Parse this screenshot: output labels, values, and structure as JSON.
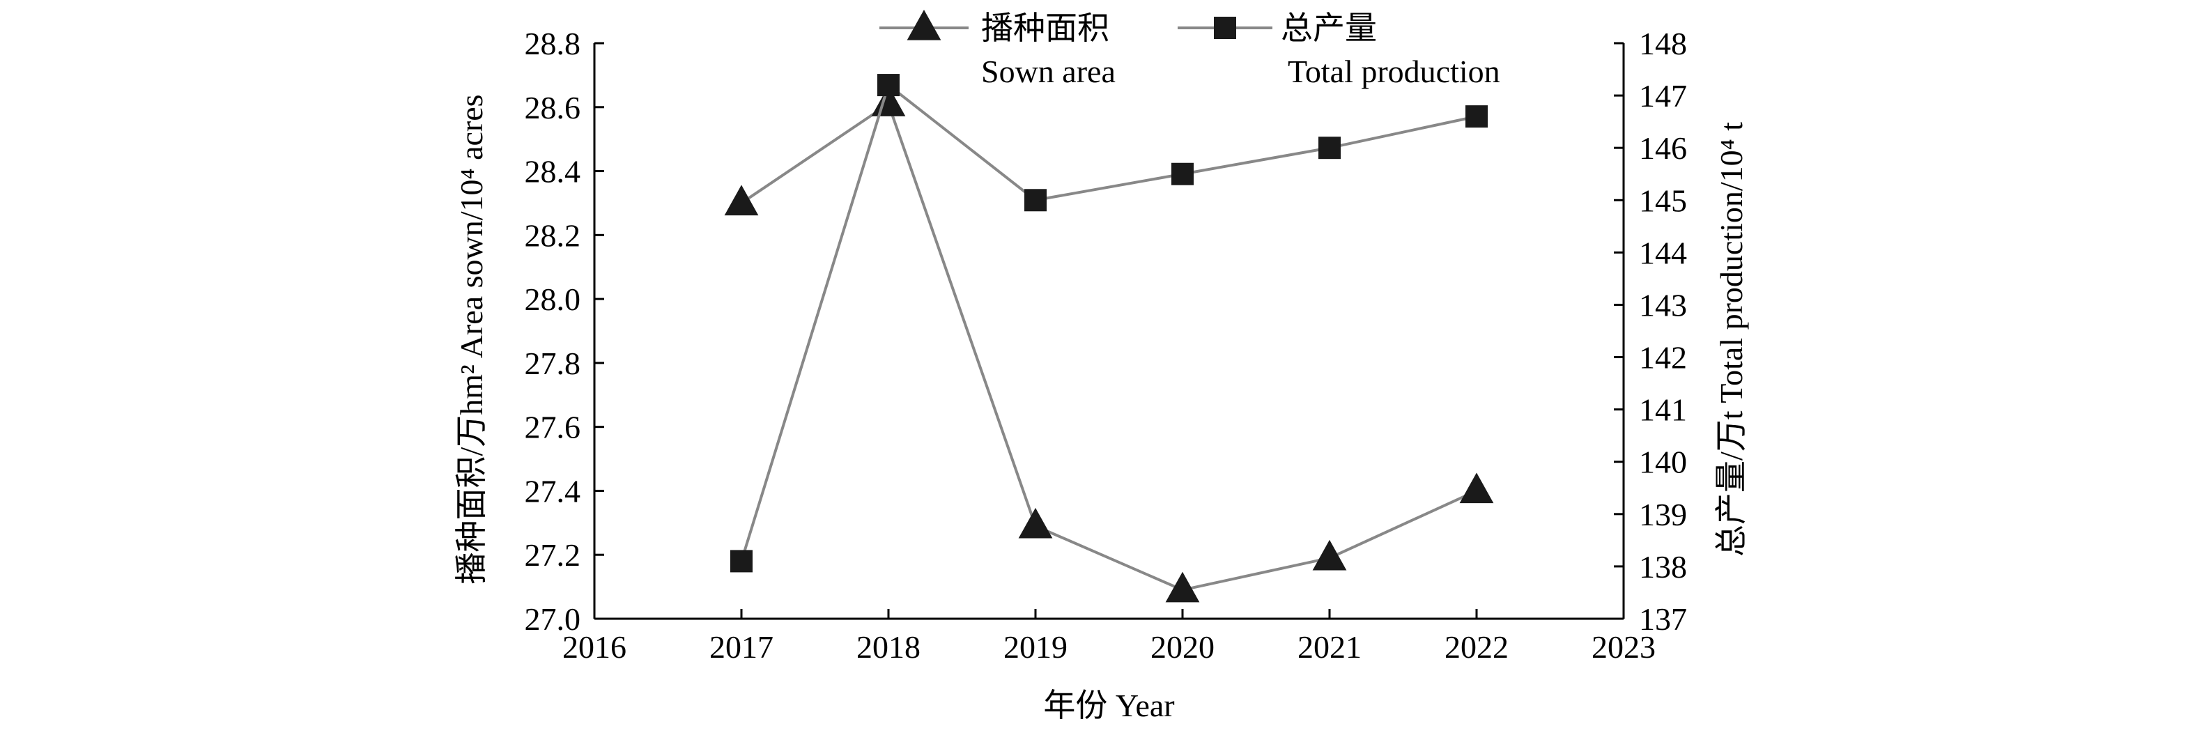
{
  "chart_data": {
    "type": "line",
    "xlabel": "年份 Year",
    "x_ticks": [
      "2016",
      "2017",
      "2018",
      "2019",
      "2020",
      "2021",
      "2022",
      "2023"
    ],
    "xlim": [
      2016,
      2023
    ],
    "y_left": {
      "label": "播种面积/万hm² Area sown/10⁴ acres",
      "ylim": [
        27.0,
        28.8
      ],
      "ticks": [
        "27.0",
        "27.2",
        "27.4",
        "27.6",
        "27.8",
        "28.0",
        "28.2",
        "28.4",
        "28.6",
        "28.8"
      ]
    },
    "y_right": {
      "label": "总产量/万t Total production/10⁴ t",
      "ylim": [
        137,
        148
      ],
      "ticks": [
        "137",
        "138",
        "139",
        "140",
        "141",
        "142",
        "143",
        "144",
        "145",
        "146",
        "147",
        "148"
      ]
    },
    "series": [
      {
        "name": "播种面积",
        "name_en": "Sown area",
        "axis": "left",
        "marker": "triangle",
        "color": "#888888",
        "marker_color": "#1a1a1a",
        "x": [
          2017,
          2018,
          2019,
          2020,
          2021,
          2022
        ],
        "y": [
          28.3,
          28.61,
          27.29,
          27.09,
          27.19,
          27.4
        ]
      },
      {
        "name": "总产量",
        "name_en": "Total production",
        "axis": "right",
        "marker": "square",
        "color": "#888888",
        "marker_color": "#1a1a1a",
        "x": [
          2017,
          2018,
          2019,
          2020,
          2021,
          2022
        ],
        "y": [
          138.1,
          147.2,
          145.0,
          145.5,
          146.0,
          146.6
        ]
      }
    ],
    "legend_position": "top"
  }
}
